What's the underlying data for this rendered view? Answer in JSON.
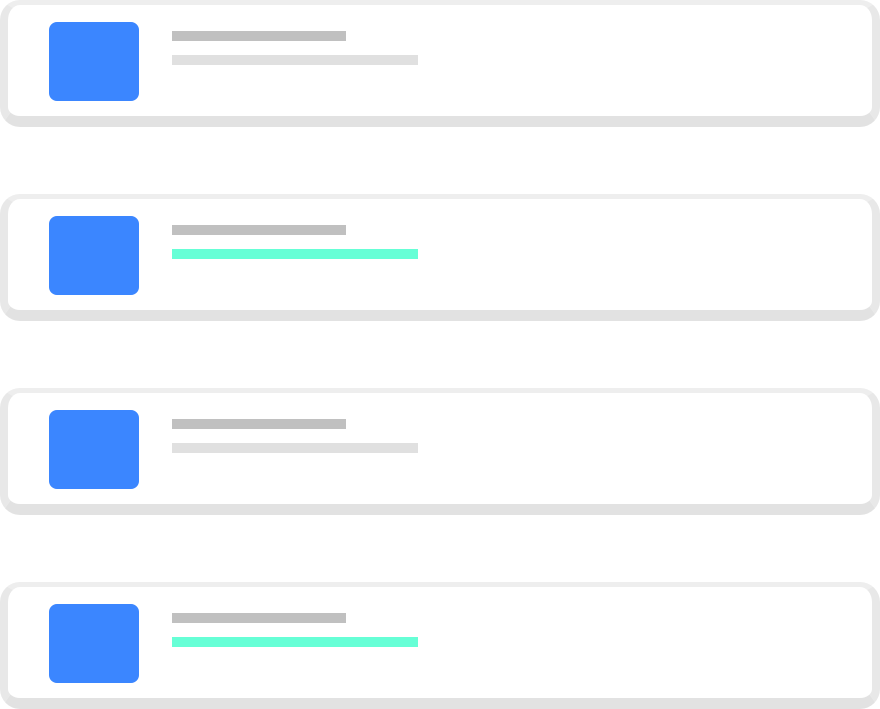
{
  "colors": {
    "thumbnail": "#3b86ff",
    "title_bar": "#c0c0c0",
    "subtitle_bar_default": "#e0e0e0",
    "subtitle_bar_highlight": "#66ffd6",
    "card_border": "#e6e6e6",
    "card_background": "#ffffff"
  },
  "list": {
    "items": [
      {
        "state": "default"
      },
      {
        "state": "highlighted"
      },
      {
        "state": "default"
      },
      {
        "state": "highlighted"
      }
    ]
  }
}
